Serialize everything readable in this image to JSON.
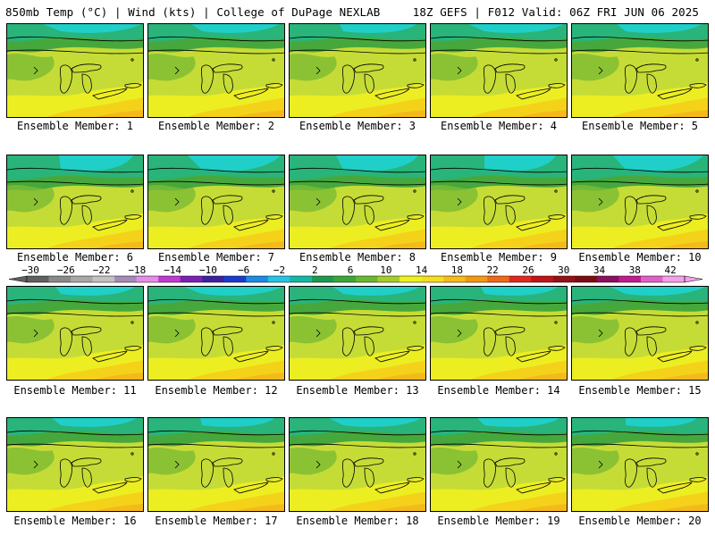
{
  "header": {
    "left": "850mb Temp (°C) | Wind (kts) | College of DuPage NEXLAB",
    "right": "18Z GEFS | F012 Valid: 06Z FRI JUN 06 2025"
  },
  "colorbar": {
    "tick_labels": [
      "−30",
      "−26",
      "−22",
      "−18",
      "−14",
      "−10",
      "−6",
      "−2",
      "2",
      "6",
      "10",
      "14",
      "18",
      "22",
      "26",
      "30",
      "34",
      "38",
      "42"
    ],
    "colors": [
      "#606060",
      "#8a8a8a",
      "#a8a8a8",
      "#c2c2c2",
      "#a68ab8",
      "#e48ee8",
      "#c03ad0",
      "#7a20b4",
      "#3c22a0",
      "#1a3ccc",
      "#1c8ce4",
      "#22c6e2",
      "#14b8a4",
      "#1e9a4e",
      "#3aa838",
      "#6ab832",
      "#a6cc28",
      "#ecf21a",
      "#f6de1c",
      "#f6bc18",
      "#f49814",
      "#f06818",
      "#e02820",
      "#c0141a",
      "#961016",
      "#7c0c10",
      "#8c1060",
      "#c01c90",
      "#e060c8",
      "#f4a0e8"
    ]
  },
  "panels": [
    {
      "label": "Ensemble Member: 1"
    },
    {
      "label": "Ensemble Member: 2"
    },
    {
      "label": "Ensemble Member: 3"
    },
    {
      "label": "Ensemble Member: 4"
    },
    {
      "label": "Ensemble Member: 5"
    },
    {
      "label": "Ensemble Member: 6"
    },
    {
      "label": "Ensemble Member: 7"
    },
    {
      "label": "Ensemble Member: 8"
    },
    {
      "label": "Ensemble Member: 9"
    },
    {
      "label": "Ensemble Member: 10"
    },
    {
      "label": "Ensemble Member: 11"
    },
    {
      "label": "Ensemble Member: 12"
    },
    {
      "label": "Ensemble Member: 13"
    },
    {
      "label": "Ensemble Member: 14"
    },
    {
      "label": "Ensemble Member: 15"
    },
    {
      "label": "Ensemble Member: 16"
    },
    {
      "label": "Ensemble Member: 17"
    },
    {
      "label": "Ensemble Member: 18"
    },
    {
      "label": "Ensemble Member: 19"
    },
    {
      "label": "Ensemble Member: 20"
    }
  ],
  "map_colors": {
    "cyan": "#20cfc8",
    "teal": "#28b47a",
    "green": "#46a83c",
    "lightgreen": "#7cbc34",
    "yellowgreen": "#c6dc36",
    "yellow": "#ecee22",
    "gold": "#f4d21a",
    "orange": "#f4ba1c"
  }
}
